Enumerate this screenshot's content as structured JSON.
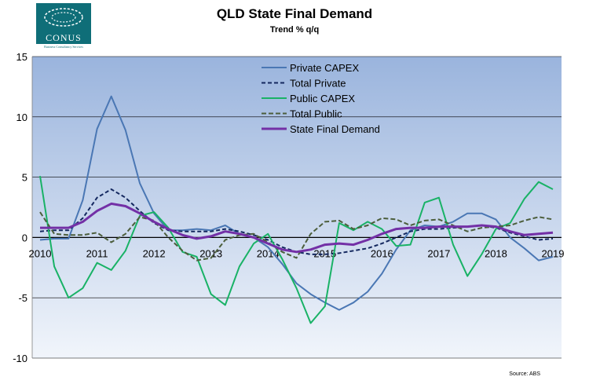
{
  "logo": {
    "name": "CONUS",
    "tagline": "Business Consultancy Services"
  },
  "source": "Source: ABS",
  "colors": {
    "plot_bg_top": "#9ab4dd",
    "plot_bg_bottom": "#f1f5fb",
    "grid": "#000000"
  },
  "chart_data": {
    "type": "line",
    "title": "QLD State Final Demand",
    "subtitle": "Trend % q/q",
    "xlabel": "",
    "ylabel": "",
    "ylim": [
      -10,
      15
    ],
    "yticks": [
      -10,
      -5,
      0,
      5,
      10,
      15
    ],
    "xlim": [
      2010,
      2019
    ],
    "xticks": [
      2010,
      2011,
      2012,
      2013,
      2014,
      2015,
      2016,
      2017,
      2018,
      2019
    ],
    "legend_position": "top-center",
    "series": [
      {
        "name": "Private CAPEX",
        "color": "#4a77b4",
        "dash": "",
        "width": 2,
        "x": [
          2010,
          2010.25,
          2010.5,
          2010.75,
          2011,
          2011.25,
          2011.5,
          2011.75,
          2012,
          2012.25,
          2012.5,
          2012.75,
          2013,
          2013.25,
          2013.5,
          2013.75,
          2014,
          2014.25,
          2014.5,
          2014.75,
          2015,
          2015.25,
          2015.5,
          2015.75,
          2016,
          2016.25,
          2016.5,
          2016.75,
          2017,
          2017.25,
          2017.5,
          2017.75,
          2018,
          2018.25,
          2018.5,
          2018.75,
          2019
        ],
        "values": [
          -0.2,
          -0.1,
          -0.1,
          3.1,
          9.0,
          11.7,
          8.9,
          4.5,
          2.0,
          0.6,
          0.6,
          0.7,
          0.6,
          1.0,
          0.3,
          0.0,
          -0.8,
          -2.2,
          -3.8,
          -4.7,
          -5.4,
          -6.0,
          -5.4,
          -4.5,
          -3.0,
          -1.0,
          0.6,
          1.0,
          0.9,
          1.3,
          2.0,
          2.0,
          1.5,
          0.0,
          -0.9,
          -1.9,
          -1.6
        ]
      },
      {
        "name": "Total Private",
        "color": "#14285f",
        "dash": "5,3",
        "width": 2,
        "x": [
          2010,
          2010.25,
          2010.5,
          2010.75,
          2011,
          2011.25,
          2011.5,
          2011.75,
          2012,
          2012.25,
          2012.5,
          2012.75,
          2013,
          2013.25,
          2013.5,
          2013.75,
          2014,
          2014.25,
          2014.5,
          2014.75,
          2015,
          2015.25,
          2015.5,
          2015.75,
          2016,
          2016.25,
          2016.5,
          2016.75,
          2017,
          2017.25,
          2017.5,
          2017.75,
          2018,
          2018.25,
          2018.5,
          2018.75,
          2019
        ],
        "values": [
          0.5,
          0.6,
          0.6,
          1.6,
          3.3,
          4.0,
          3.3,
          2.2,
          1.2,
          0.6,
          0.5,
          0.5,
          0.5,
          0.7,
          0.5,
          0.2,
          -0.2,
          -0.8,
          -1.2,
          -1.4,
          -1.4,
          -1.3,
          -1.1,
          -0.9,
          -0.5,
          0.0,
          0.5,
          0.7,
          0.7,
          0.8,
          0.9,
          1.0,
          0.8,
          0.4,
          0.1,
          -0.2,
          -0.1
        ]
      },
      {
        "name": "Public CAPEX",
        "color": "#19b266",
        "dash": "",
        "width": 2,
        "x": [
          2010,
          2010.25,
          2010.5,
          2010.75,
          2011,
          2011.25,
          2011.5,
          2011.75,
          2012,
          2012.25,
          2012.5,
          2012.75,
          2013,
          2013.25,
          2013.5,
          2013.75,
          2014,
          2014.25,
          2014.5,
          2014.75,
          2015,
          2015.25,
          2015.5,
          2015.75,
          2016,
          2016.25,
          2016.5,
          2016.75,
          2017,
          2017.25,
          2017.5,
          2017.75,
          2018,
          2018.25,
          2018.5,
          2018.75,
          2019
        ],
        "values": [
          5.1,
          -2.4,
          -5.0,
          -4.2,
          -2.1,
          -2.7,
          -1.1,
          1.8,
          2.1,
          0.8,
          -1.2,
          -1.6,
          -4.7,
          -5.6,
          -2.4,
          -0.5,
          0.3,
          -1.8,
          -4.2,
          -7.1,
          -5.7,
          1.2,
          0.6,
          1.3,
          0.7,
          -0.7,
          -0.6,
          2.9,
          3.3,
          -0.6,
          -3.2,
          -1.4,
          0.7,
          1.2,
          3.2,
          4.6,
          4.0
        ]
      },
      {
        "name": "Total Public",
        "color": "#4c5e3c",
        "dash": "6,3",
        "width": 2,
        "x": [
          2010,
          2010.25,
          2010.5,
          2010.75,
          2011,
          2011.25,
          2011.5,
          2011.75,
          2012,
          2012.25,
          2012.5,
          2012.75,
          2013,
          2013.25,
          2013.5,
          2013.75,
          2014,
          2014.25,
          2014.5,
          2014.75,
          2015,
          2015.25,
          2015.5,
          2015.75,
          2016,
          2016.25,
          2016.5,
          2016.75,
          2017,
          2017.25,
          2017.5,
          2017.75,
          2018,
          2018.25,
          2018.5,
          2018.75,
          2019
        ],
        "values": [
          2.1,
          0.3,
          0.2,
          0.2,
          0.4,
          -0.4,
          0.3,
          1.7,
          1.4,
          0.0,
          -1.1,
          -1.9,
          -1.7,
          -0.2,
          0.2,
          0.3,
          -0.4,
          -1.2,
          -1.7,
          0.3,
          1.3,
          1.4,
          0.7,
          1.0,
          1.6,
          1.5,
          1.0,
          1.4,
          1.5,
          1.0,
          0.5,
          0.8,
          0.9,
          1.0,
          1.4,
          1.7,
          1.5
        ]
      },
      {
        "name": "State Final Demand",
        "color": "#7330a6",
        "dash": "",
        "width": 3,
        "x": [
          2010,
          2010.25,
          2010.5,
          2010.75,
          2011,
          2011.25,
          2011.5,
          2011.75,
          2012,
          2012.25,
          2012.5,
          2012.75,
          2013,
          2013.25,
          2013.5,
          2013.75,
          2014,
          2014.25,
          2014.5,
          2014.75,
          2015,
          2015.25,
          2015.5,
          2015.75,
          2016,
          2016.25,
          2016.5,
          2016.75,
          2017,
          2017.25,
          2017.5,
          2017.75,
          2018,
          2018.25,
          2018.5,
          2018.75,
          2019
        ],
        "values": [
          0.8,
          0.8,
          0.8,
          1.3,
          2.2,
          2.8,
          2.6,
          2.0,
          1.3,
          0.7,
          0.2,
          -0.1,
          0.1,
          0.5,
          0.3,
          0.0,
          -0.5,
          -1.0,
          -1.2,
          -1.0,
          -0.6,
          -0.5,
          -0.6,
          -0.2,
          0.3,
          0.7,
          0.8,
          0.8,
          0.9,
          0.9,
          0.9,
          1.0,
          0.9,
          0.5,
          0.2,
          0.3,
          0.4
        ]
      }
    ]
  }
}
